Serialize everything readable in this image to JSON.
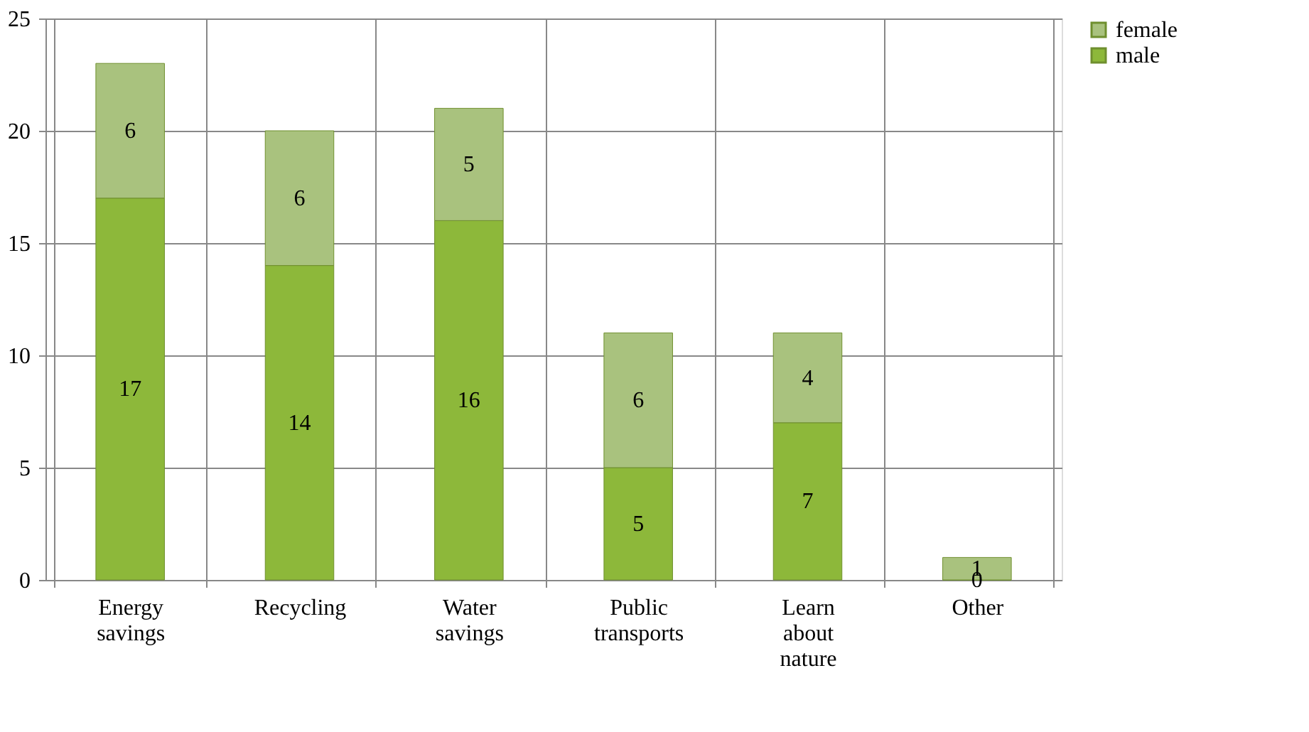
{
  "chart_data": {
    "type": "bar",
    "stacked": true,
    "categories": [
      "Energy savings",
      "Recycling",
      "Water savings",
      "Public transports",
      "Learn about nature",
      "Other"
    ],
    "series": [
      {
        "name": "male",
        "color": "#8db83a",
        "values": [
          17,
          14,
          16,
          5,
          7,
          0
        ]
      },
      {
        "name": "female",
        "color": "#a9c27e",
        "values": [
          6,
          6,
          5,
          6,
          4,
          1
        ]
      }
    ],
    "ylim": [
      0,
      25
    ],
    "yticks": [
      0,
      5,
      10,
      15,
      20,
      25
    ],
    "grid": true,
    "legend": "right",
    "data_labels": true
  }
}
